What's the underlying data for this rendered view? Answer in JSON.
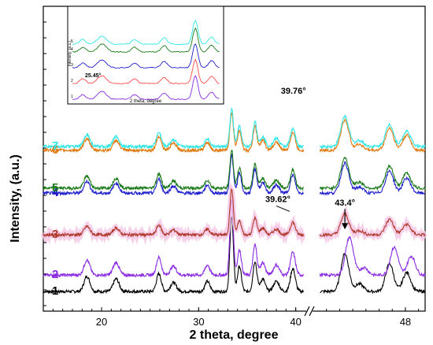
{
  "chart_data": {
    "type": "line",
    "xlabel": "2 theta, degree",
    "ylabel": "Intensity, (a.u.)",
    "axis_break_label": "//",
    "x_tick_labels": [
      "20",
      "30",
      "40",
      "48"
    ],
    "segments": [
      {
        "xlim": [
          14,
          41
        ]
      },
      {
        "xlim": [
          41,
          49.5
        ]
      }
    ],
    "series": [
      {
        "name": "1",
        "color": "#000000",
        "offset": 0.0,
        "noise": 0.012,
        "shift": 0.0
      },
      {
        "name": "2",
        "color": "#8a2be2",
        "offset": 0.13,
        "noise": 0.012,
        "shift": 0.35
      },
      {
        "name": "3",
        "color": "#b03a2e",
        "offset": 0.45,
        "noise": 0.012,
        "shift": 0.0,
        "halo": "#f4c6e4"
      },
      {
        "name": "4",
        "color": "#1f1fcc",
        "offset": 0.78,
        "noise": 0.012,
        "shift": 0.0
      },
      {
        "name": "5",
        "color": "#1a7a1a",
        "offset": 0.82,
        "noise": 0.012,
        "shift": 0.0
      },
      {
        "name": "6",
        "color": "#e07a10",
        "offset": 1.12,
        "noise": 0.012,
        "shift": 0.0
      },
      {
        "name": "7",
        "color": "#2ee6e6",
        "offset": 1.15,
        "noise": 0.012,
        "shift": 0.0
      }
    ],
    "peaks_common": [
      {
        "x": 18.5,
        "h": 0.12,
        "w": 0.3
      },
      {
        "x": 21.5,
        "h": 0.1,
        "w": 0.3
      },
      {
        "x": 25.9,
        "h": 0.14,
        "w": 0.25
      },
      {
        "x": 27.4,
        "h": 0.07,
        "w": 0.3
      },
      {
        "x": 30.9,
        "h": 0.08,
        "w": 0.25
      },
      {
        "x": 33.4,
        "h": 0.6,
        "w": 0.18
      },
      {
        "x": 34.2,
        "h": 0.2,
        "w": 0.2
      },
      {
        "x": 35.8,
        "h": 0.24,
        "w": 0.2
      },
      {
        "x": 36.6,
        "h": 0.1,
        "w": 0.25
      },
      {
        "x": 38.0,
        "h": 0.08,
        "w": 0.3
      },
      {
        "x": 39.7,
        "h": 0.18,
        "w": 0.25
      },
      {
        "x": 43.4,
        "h": 0.3,
        "w": 0.3
      },
      {
        "x": 44.5,
        "h": 0.06,
        "w": 0.3
      },
      {
        "x": 46.8,
        "h": 0.22,
        "w": 0.3
      },
      {
        "x": 48.1,
        "h": 0.15,
        "w": 0.3
      }
    ],
    "annotations": [
      {
        "text": "39.76°",
        "x": 39.76,
        "y_series": "7"
      },
      {
        "text": "39.62°",
        "x": 39.62,
        "y_series": "3"
      },
      {
        "text": "43.4°",
        "x": 43.4,
        "y_series": "3"
      }
    ],
    "inset": {
      "xlabel": "2 theta, degree",
      "ylabel": "Intensity, (a.u.)",
      "annotation": "25.45°",
      "series_colors": [
        "#8a2be2",
        "#ff4a4a",
        "#1f1fcc",
        "#1a7a1a",
        "#2ee6e6"
      ],
      "series_labels": [
        "1",
        "2",
        "3",
        "4",
        "5"
      ]
    }
  }
}
